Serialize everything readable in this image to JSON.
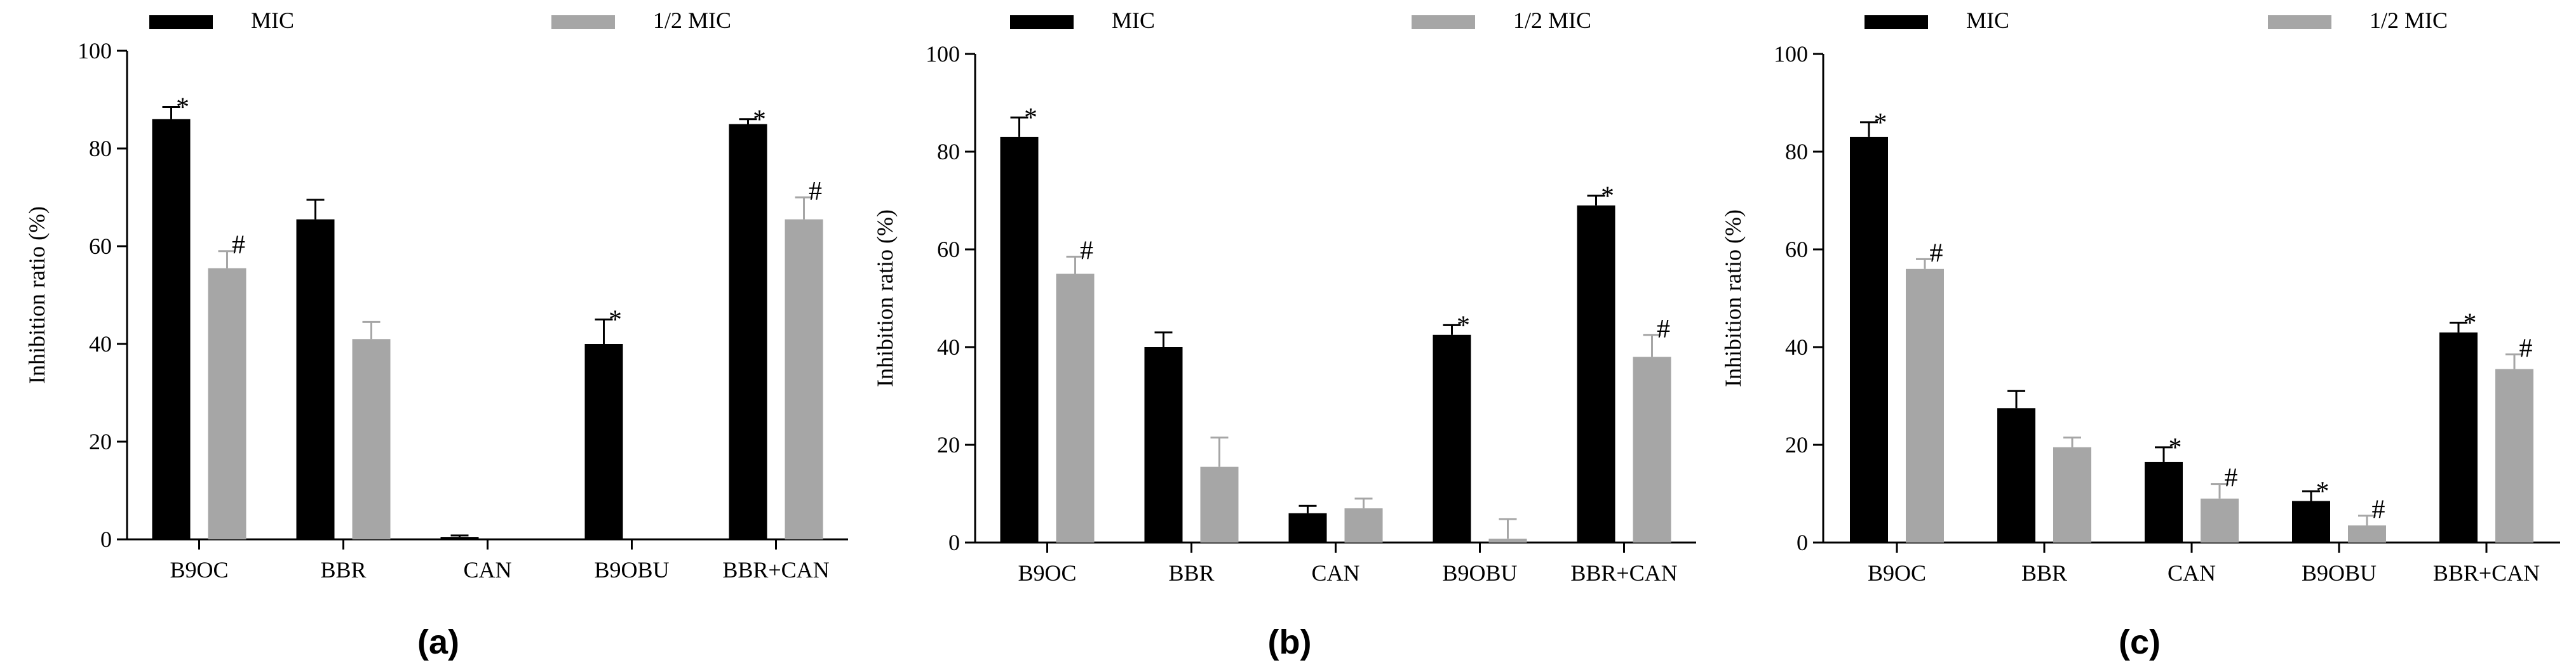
{
  "chart_data": [
    {
      "type": "bar",
      "panel_label": "(a)",
      "categories": [
        "B9OC",
        "BBR",
        "CAN",
        "B9OBU",
        "BBR+CAN"
      ],
      "ylabel": "Inhibition ratio (%)",
      "ylim": [
        0,
        100
      ],
      "yticks": [
        0,
        20,
        40,
        60,
        80,
        100
      ],
      "legend_position": "top",
      "series": [
        {
          "name": "MIC",
          "color": "#000000",
          "values": [
            86,
            65.5,
            0.5,
            40,
            85
          ],
          "errors": [
            2.5,
            4,
            0.3,
            5,
            1
          ],
          "markers": [
            "*",
            "",
            "",
            "*",
            "*"
          ]
        },
        {
          "name": "1/2 MIC",
          "color": "#a6a6a6",
          "values": [
            55.5,
            41,
            0,
            0,
            65.5
          ],
          "errors": [
            3.5,
            3.5,
            0,
            0,
            4.5
          ],
          "markers": [
            "#",
            "",
            "",
            "",
            "#"
          ]
        }
      ]
    },
    {
      "type": "bar",
      "panel_label": "(b)",
      "categories": [
        "B9OC",
        "BBR",
        "CAN",
        "B9OBU",
        "BBR+CAN"
      ],
      "ylabel": "Inhibition ratio (%)",
      "ylim": [
        0,
        100
      ],
      "yticks": [
        0,
        20,
        40,
        60,
        80,
        100
      ],
      "legend_position": "top",
      "series": [
        {
          "name": "MIC",
          "color": "#000000",
          "values": [
            83,
            40,
            6,
            42.5,
            69
          ],
          "errors": [
            4,
            3,
            1.5,
            2,
            2
          ],
          "markers": [
            "*",
            "",
            "",
            "*",
            "*"
          ]
        },
        {
          "name": "1/2 MIC",
          "color": "#a6a6a6",
          "values": [
            55,
            15.5,
            7,
            0.8,
            38
          ],
          "errors": [
            3.5,
            6,
            2,
            4,
            4.5
          ],
          "markers": [
            "#",
            "",
            "",
            "",
            "#"
          ]
        }
      ]
    },
    {
      "type": "bar",
      "panel_label": "(c)",
      "categories": [
        "B9OC",
        "BBR",
        "CAN",
        "B9OBU",
        "BBR+CAN"
      ],
      "ylabel": "Inhibition ratio (%)",
      "ylim": [
        0,
        100
      ],
      "yticks": [
        0,
        20,
        40,
        60,
        80,
        100
      ],
      "legend_position": "top",
      "series": [
        {
          "name": "MIC",
          "color": "#000000",
          "values": [
            83,
            27.5,
            16.5,
            8.5,
            43
          ],
          "errors": [
            3,
            3.5,
            3,
            2,
            2
          ],
          "markers": [
            "*",
            "",
            "*",
            "*",
            "*"
          ]
        },
        {
          "name": "1/2 MIC",
          "color": "#a6a6a6",
          "values": [
            56,
            19.5,
            9,
            3.5,
            35.5
          ],
          "errors": [
            2,
            2,
            3,
            2,
            3
          ],
          "markers": [
            "#",
            "",
            "#",
            "#",
            "#"
          ]
        }
      ]
    }
  ]
}
